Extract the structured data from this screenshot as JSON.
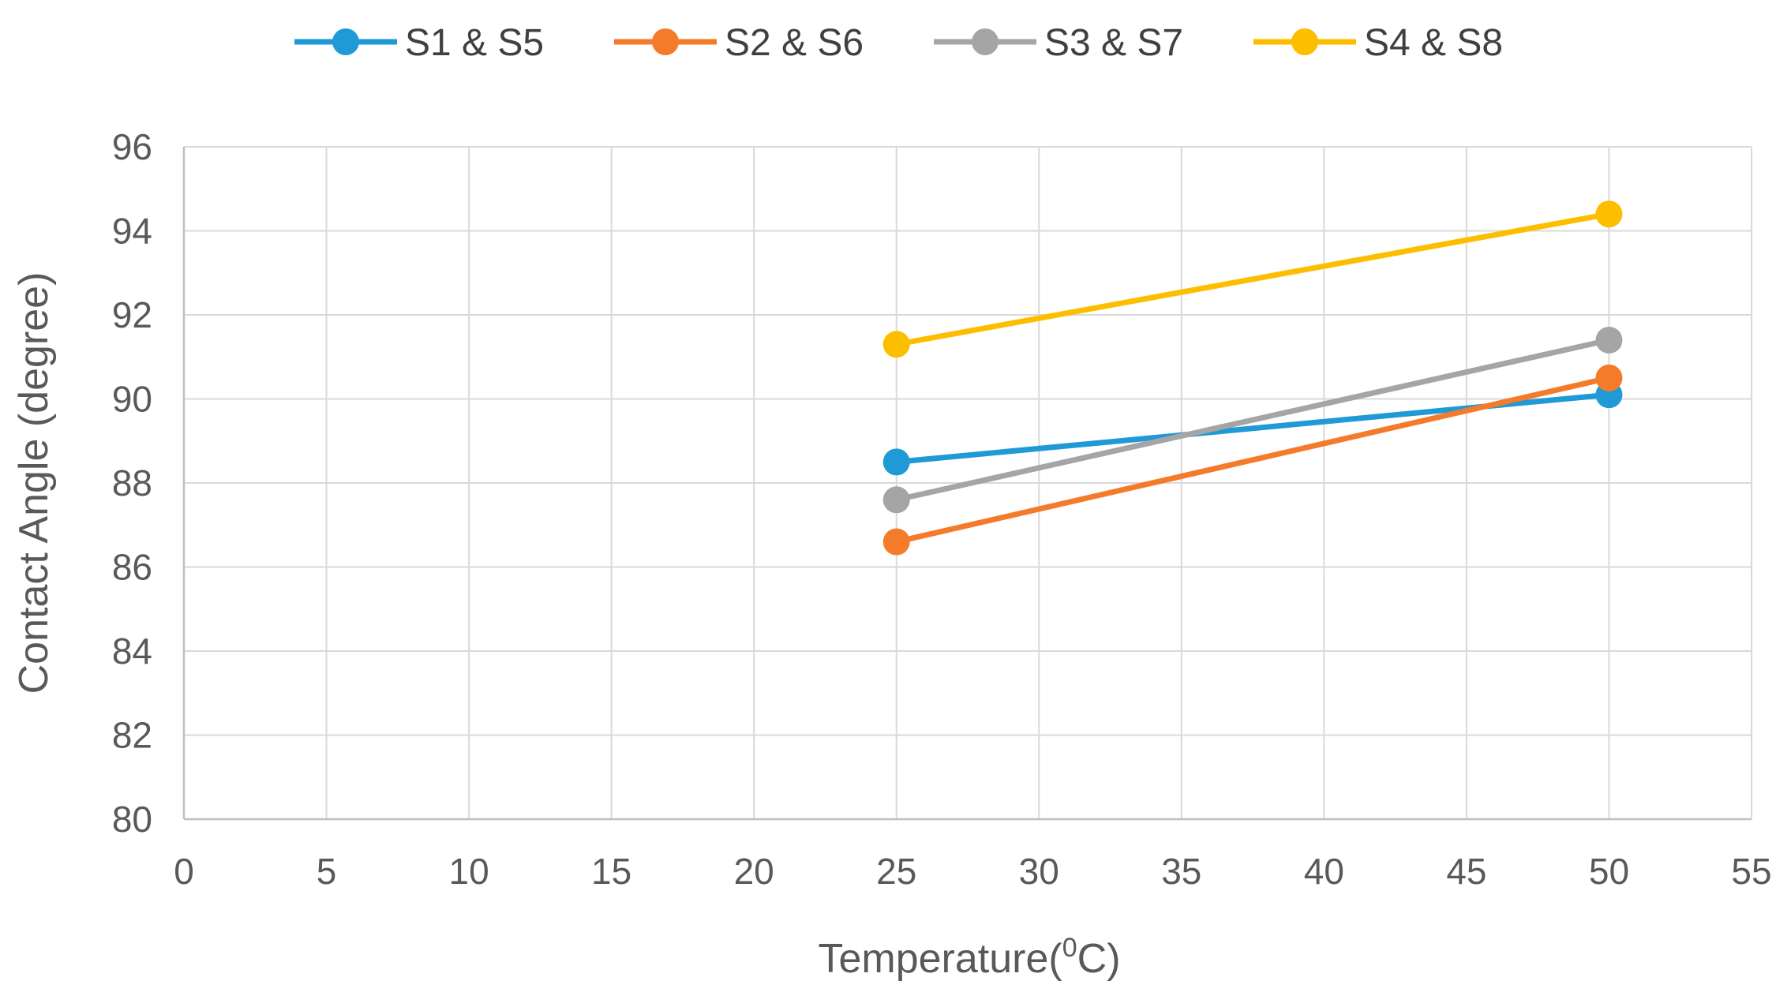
{
  "chart_data": {
    "type": "line",
    "title": "",
    "xlabel": "Temperature(",
    "xlabel_sup": "0",
    "xlabel_suffix": "C)",
    "ylabel": "Contact Angle (degree)",
    "xlim": [
      0,
      55
    ],
    "ylim": [
      80,
      96
    ],
    "x_ticks": [
      0,
      5,
      10,
      15,
      20,
      25,
      30,
      35,
      40,
      45,
      50,
      55
    ],
    "y_ticks": [
      80,
      82,
      84,
      86,
      88,
      90,
      92,
      94,
      96
    ],
    "grid": true,
    "legend_position": "top",
    "x": [
      25,
      50
    ],
    "series": [
      {
        "name": "S1 & S5",
        "color": "#1f9ad6",
        "values": [
          88.5,
          90.1
        ]
      },
      {
        "name": "S2 & S6",
        "color": "#f47b2a",
        "values": [
          86.6,
          90.5
        ]
      },
      {
        "name": "S3 & S7",
        "color": "#a5a5a5",
        "values": [
          87.6,
          91.4
        ]
      },
      {
        "name": "S4 & S8",
        "color": "#fdbe00",
        "values": [
          91.3,
          94.4
        ]
      }
    ]
  }
}
